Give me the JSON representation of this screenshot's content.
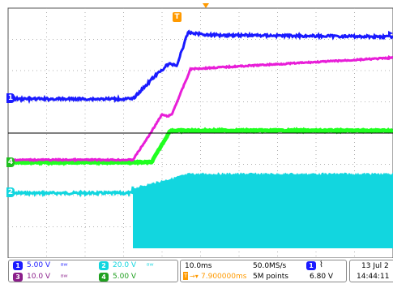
{
  "colors": {
    "ch1": "#1a1aff",
    "ch2": "#12d6df",
    "ch3": "#e81ed8",
    "ch4": "#20ff20",
    "trigger": "#ff9a00",
    "grid": "#b0b0b0",
    "axis": "#000000"
  },
  "channels": [
    {
      "id": "1",
      "scale": "5.00 V",
      "bw": "½",
      "color": "#1a1aff"
    },
    {
      "id": "2",
      "scale": "20.0 V",
      "bw": "½",
      "color": "#12d6df"
    },
    {
      "id": "3",
      "scale": "10.0 V",
      "bw": "½",
      "color": "#8a1d8a"
    },
    {
      "id": "4",
      "scale": "5.00 V",
      "bw": "",
      "color": "#20a020"
    }
  ],
  "timebase": {
    "scale": "10.0ms",
    "trigger_pos": "7.900000ms",
    "sample_rate": "50.0MS/s",
    "record_length": "5M points"
  },
  "trigger": {
    "source": "1",
    "slope": "rising",
    "level": "6.80 V",
    "marker": "T"
  },
  "datetime": {
    "date": "13 Jul 2",
    "time": "14:44:11"
  },
  "markers": {
    "ch1": "1",
    "ch4": "4",
    "ch2": "2"
  }
}
